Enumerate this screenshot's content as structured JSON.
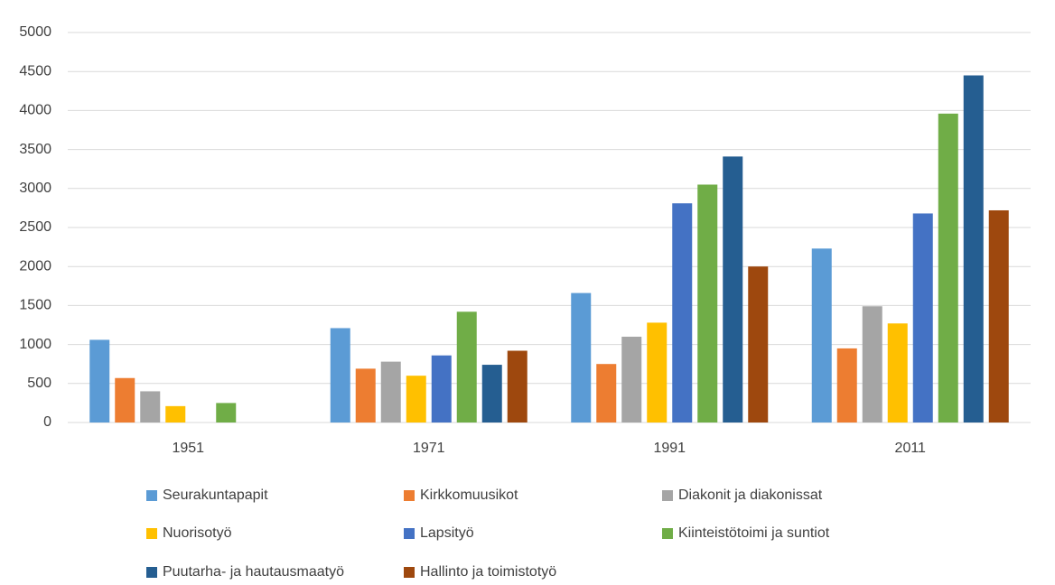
{
  "chart_data": {
    "type": "bar",
    "categories": [
      "1951",
      "1971",
      "1991",
      "2011"
    ],
    "series": [
      {
        "name": "Seurakuntapapit",
        "color": "#5b9bd5",
        "values": [
          1060,
          1210,
          1660,
          2230
        ]
      },
      {
        "name": "Kirkkomuusikot",
        "color": "#ed7d31",
        "values": [
          570,
          690,
          750,
          950
        ]
      },
      {
        "name": "Diakonit ja diakonissat",
        "color": "#a5a5a5",
        "values": [
          400,
          780,
          1100,
          1490
        ]
      },
      {
        "name": "Nuorisotyö",
        "color": "#ffc000",
        "values": [
          210,
          600,
          1280,
          1270
        ]
      },
      {
        "name": "Lapsityö",
        "color": "#4472c4",
        "values": [
          null,
          860,
          2810,
          2680
        ]
      },
      {
        "name": "Kiinteistötoimi ja suntiot",
        "color": "#70ad47",
        "values": [
          250,
          1420,
          3050,
          3960
        ]
      },
      {
        "name": "Puutarha- ja hautausmaatyö",
        "color": "#255e91",
        "values": [
          null,
          740,
          3410,
          4450
        ]
      },
      {
        "name": "Hallinto ja toimistotyö",
        "color": "#9e480e",
        "values": [
          null,
          920,
          2000,
          2720
        ]
      }
    ],
    "ylim": [
      0,
      5000
    ],
    "yticks": [
      0,
      500,
      1000,
      1500,
      2000,
      2500,
      3000,
      3500,
      4000,
      4500,
      5000
    ],
    "grid": true,
    "legend": "bottom"
  }
}
